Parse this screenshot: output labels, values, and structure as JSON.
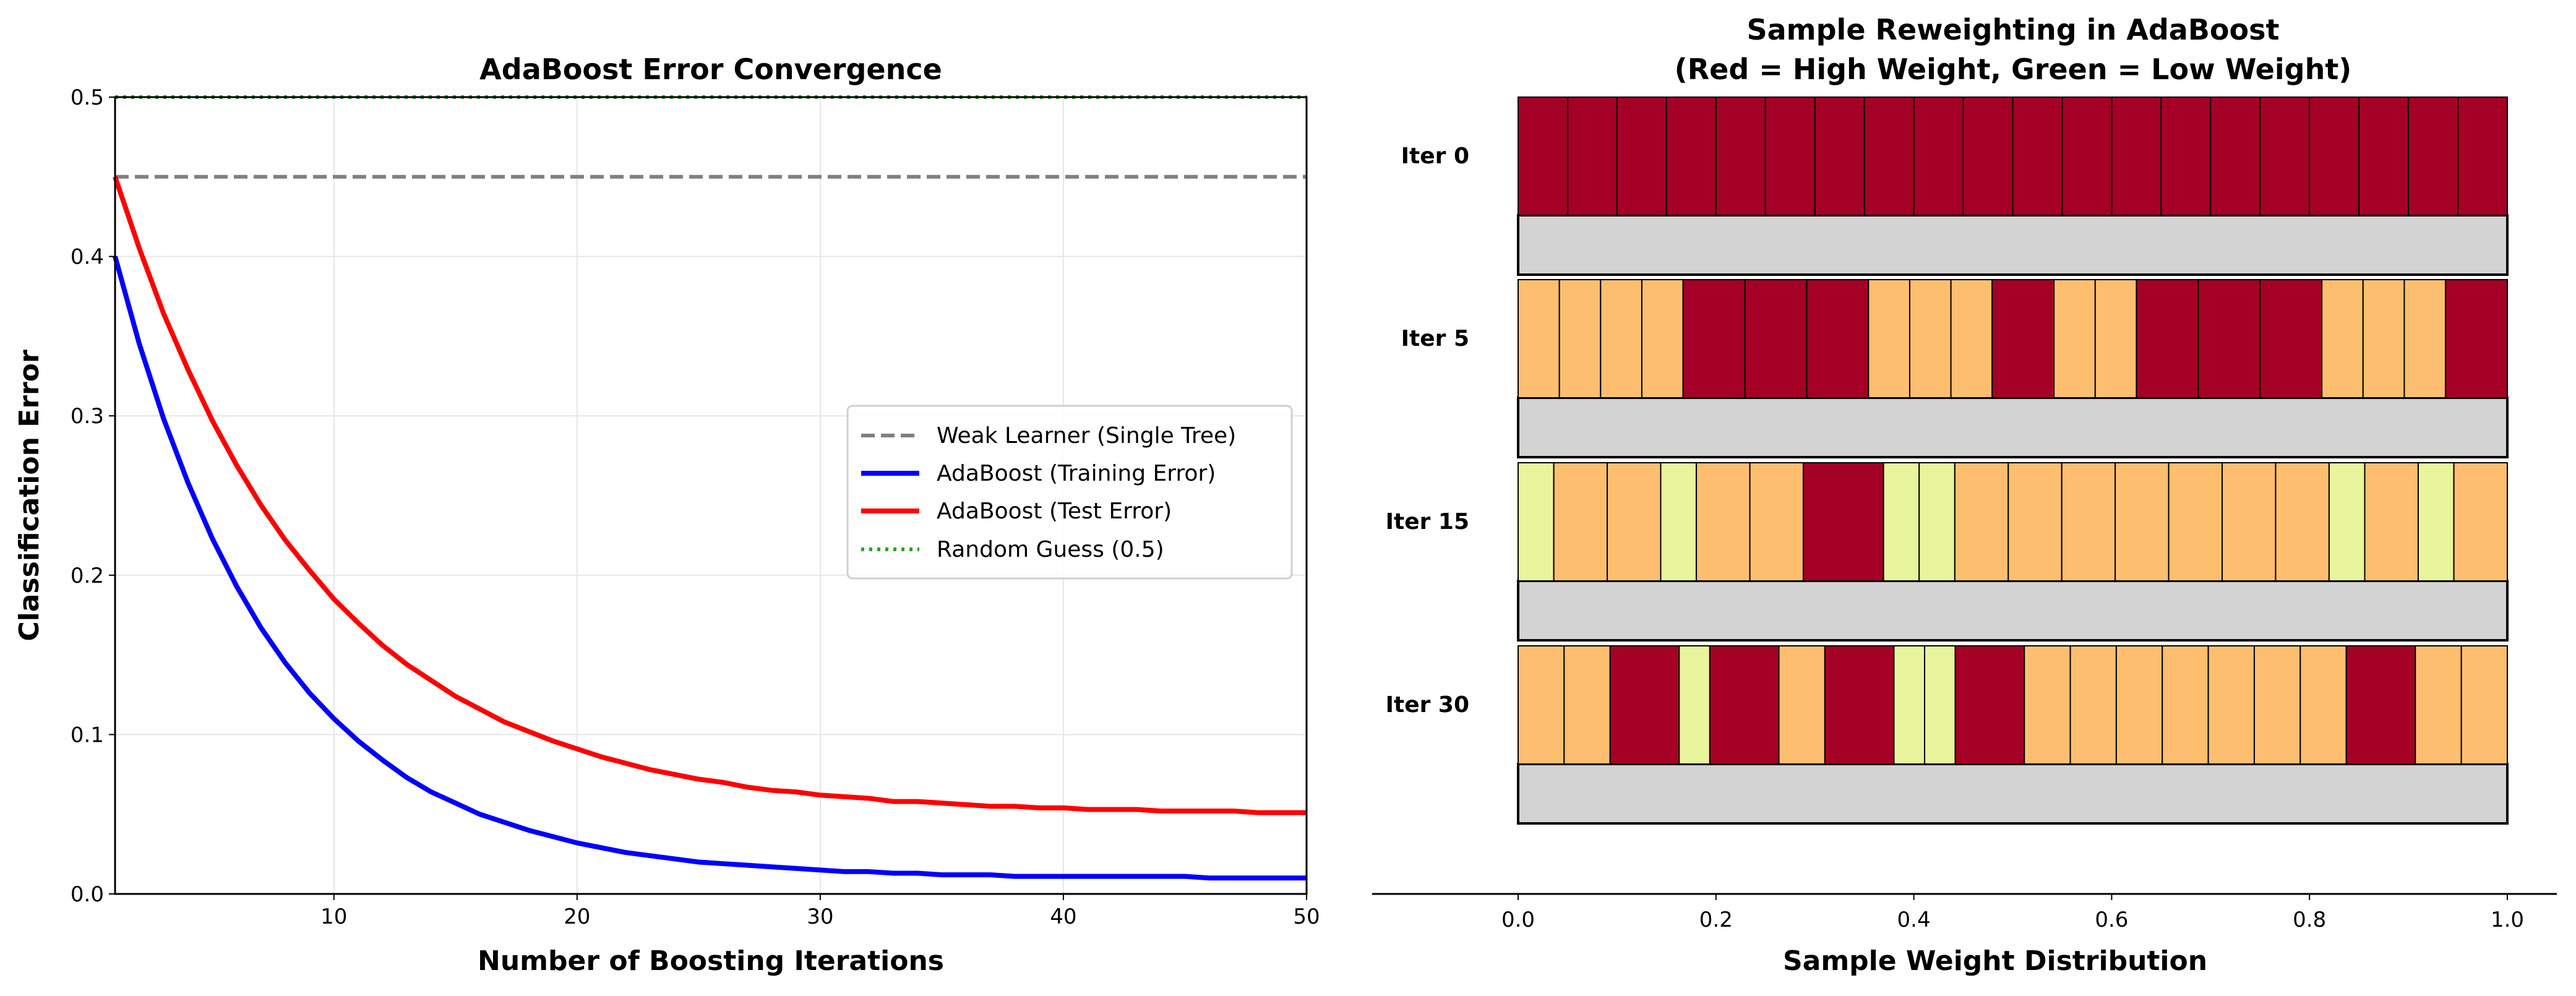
{
  "chart_data": [
    {
      "type": "line",
      "title": "AdaBoost Error Convergence",
      "xlabel": "Number of Boosting Iterations",
      "ylabel": "Classification Error",
      "xlim": [
        1,
        50
      ],
      "ylim": [
        0,
        0.5
      ],
      "xticks": [
        "10",
        "20",
        "30",
        "40",
        "50"
      ],
      "yticks": [
        "0.0",
        "0.1",
        "0.2",
        "0.3",
        "0.4",
        "0.5"
      ],
      "grid": true,
      "legend_position": "center-right",
      "x": [
        1,
        2,
        3,
        4,
        5,
        6,
        7,
        8,
        9,
        10,
        11,
        12,
        13,
        14,
        15,
        16,
        17,
        18,
        19,
        20,
        21,
        22,
        23,
        24,
        25,
        26,
        27,
        28,
        29,
        30,
        31,
        32,
        33,
        34,
        35,
        36,
        37,
        38,
        39,
        40,
        41,
        42,
        43,
        44,
        45,
        46,
        47,
        48,
        49,
        50
      ],
      "series": [
        {
          "name": "Weak Learner (Single Tree)",
          "style": "dashed",
          "color": "#808080",
          "constant": 0.45
        },
        {
          "name": "AdaBoost (Training Error)",
          "style": "solid",
          "color": "#0000ff",
          "values": [
            0.4,
            0.345,
            0.298,
            0.258,
            0.223,
            0.193,
            0.167,
            0.145,
            0.126,
            0.11,
            0.096,
            0.084,
            0.073,
            0.064,
            0.057,
            0.05,
            0.045,
            0.04,
            0.036,
            0.032,
            0.029,
            0.026,
            0.024,
            0.022,
            0.02,
            0.019,
            0.018,
            0.017,
            0.016,
            0.015,
            0.014,
            0.014,
            0.013,
            0.013,
            0.012,
            0.012,
            0.012,
            0.011,
            0.011,
            0.011,
            0.011,
            0.011,
            0.011,
            0.011,
            0.011,
            0.01,
            0.01,
            0.01,
            0.01,
            0.01
          ]
        },
        {
          "name": "AdaBoost (Test Error)",
          "style": "solid",
          "color": "#ff0000",
          "values": [
            0.45,
            0.405,
            0.364,
            0.329,
            0.297,
            0.269,
            0.244,
            0.222,
            0.203,
            0.185,
            0.17,
            0.156,
            0.144,
            0.134,
            0.124,
            0.116,
            0.108,
            0.102,
            0.096,
            0.091,
            0.086,
            0.082,
            0.078,
            0.075,
            0.072,
            0.07,
            0.067,
            0.065,
            0.064,
            0.062,
            0.061,
            0.06,
            0.058,
            0.058,
            0.057,
            0.056,
            0.055,
            0.055,
            0.054,
            0.054,
            0.053,
            0.053,
            0.053,
            0.052,
            0.052,
            0.052,
            0.052,
            0.051,
            0.051,
            0.051
          ]
        },
        {
          "name": "Random Guess (0.5)",
          "style": "dotted",
          "color": "#2ca02c",
          "constant": 0.5
        }
      ]
    },
    {
      "type": "bar",
      "orientation": "horizontal-stacked",
      "title": "Sample Reweighting in AdaBoost",
      "subtitle": "(Red = High Weight, Green = Low Weight)",
      "xlabel": "Sample Weight Distribution",
      "xlim": [
        0,
        1
      ],
      "xticks": [
        "0.0",
        "0.2",
        "0.4",
        "0.6",
        "0.8",
        "1.0"
      ],
      "colors": {
        "high": "#a50026",
        "medium": "#fdbf6f",
        "low": "#e8f59c",
        "empty": "#d3d3d3"
      },
      "rows": [
        {
          "label": "Iter 0",
          "levels": [
            "high",
            "high",
            "high",
            "high",
            "high",
            "high",
            "high",
            "high",
            "high",
            "high",
            "high",
            "high",
            "high",
            "high",
            "high",
            "high",
            "high",
            "high",
            "high",
            "high"
          ],
          "weights": [
            0.05,
            0.05,
            0.05,
            0.05,
            0.05,
            0.05,
            0.05,
            0.05,
            0.05,
            0.05,
            0.05,
            0.05,
            0.05,
            0.05,
            0.05,
            0.05,
            0.05,
            0.05,
            0.05,
            0.05
          ]
        },
        {
          "label": "Iter 5",
          "levels": [
            "medium",
            "medium",
            "medium",
            "medium",
            "high",
            "high",
            "high",
            "medium",
            "medium",
            "medium",
            "high",
            "medium",
            "medium",
            "high",
            "high",
            "high",
            "medium",
            "medium",
            "medium",
            "high"
          ],
          "weights": [
            0.0417,
            0.0417,
            0.0417,
            0.0417,
            0.0625,
            0.0625,
            0.0625,
            0.0417,
            0.0417,
            0.0417,
            0.0625,
            0.0417,
            0.0417,
            0.0625,
            0.0625,
            0.0625,
            0.0417,
            0.0417,
            0.0417,
            0.0625
          ]
        },
        {
          "label": "Iter 15",
          "levels": [
            "low",
            "medium",
            "medium",
            "low",
            "medium",
            "medium",
            "high",
            "low",
            "low",
            "medium",
            "medium",
            "medium",
            "medium",
            "medium",
            "medium",
            "medium",
            "low",
            "medium",
            "low",
            "medium"
          ],
          "weights": [
            0.036,
            0.054,
            0.054,
            0.036,
            0.054,
            0.054,
            0.081,
            0.036,
            0.036,
            0.054,
            0.054,
            0.054,
            0.054,
            0.054,
            0.054,
            0.054,
            0.036,
            0.054,
            0.036,
            0.054
          ]
        },
        {
          "label": "Iter 30",
          "levels": [
            "medium",
            "medium",
            "high",
            "low",
            "high",
            "medium",
            "high",
            "low",
            "low",
            "high",
            "medium",
            "medium",
            "medium",
            "medium",
            "medium",
            "medium",
            "medium",
            "high",
            "medium",
            "medium"
          ],
          "weights": [
            0.0465,
            0.0465,
            0.0698,
            0.031,
            0.0698,
            0.0465,
            0.0698,
            0.031,
            0.031,
            0.0698,
            0.0465,
            0.0465,
            0.0465,
            0.0465,
            0.0465,
            0.0465,
            0.0465,
            0.0698,
            0.0465,
            0.0465
          ]
        }
      ]
    }
  ]
}
